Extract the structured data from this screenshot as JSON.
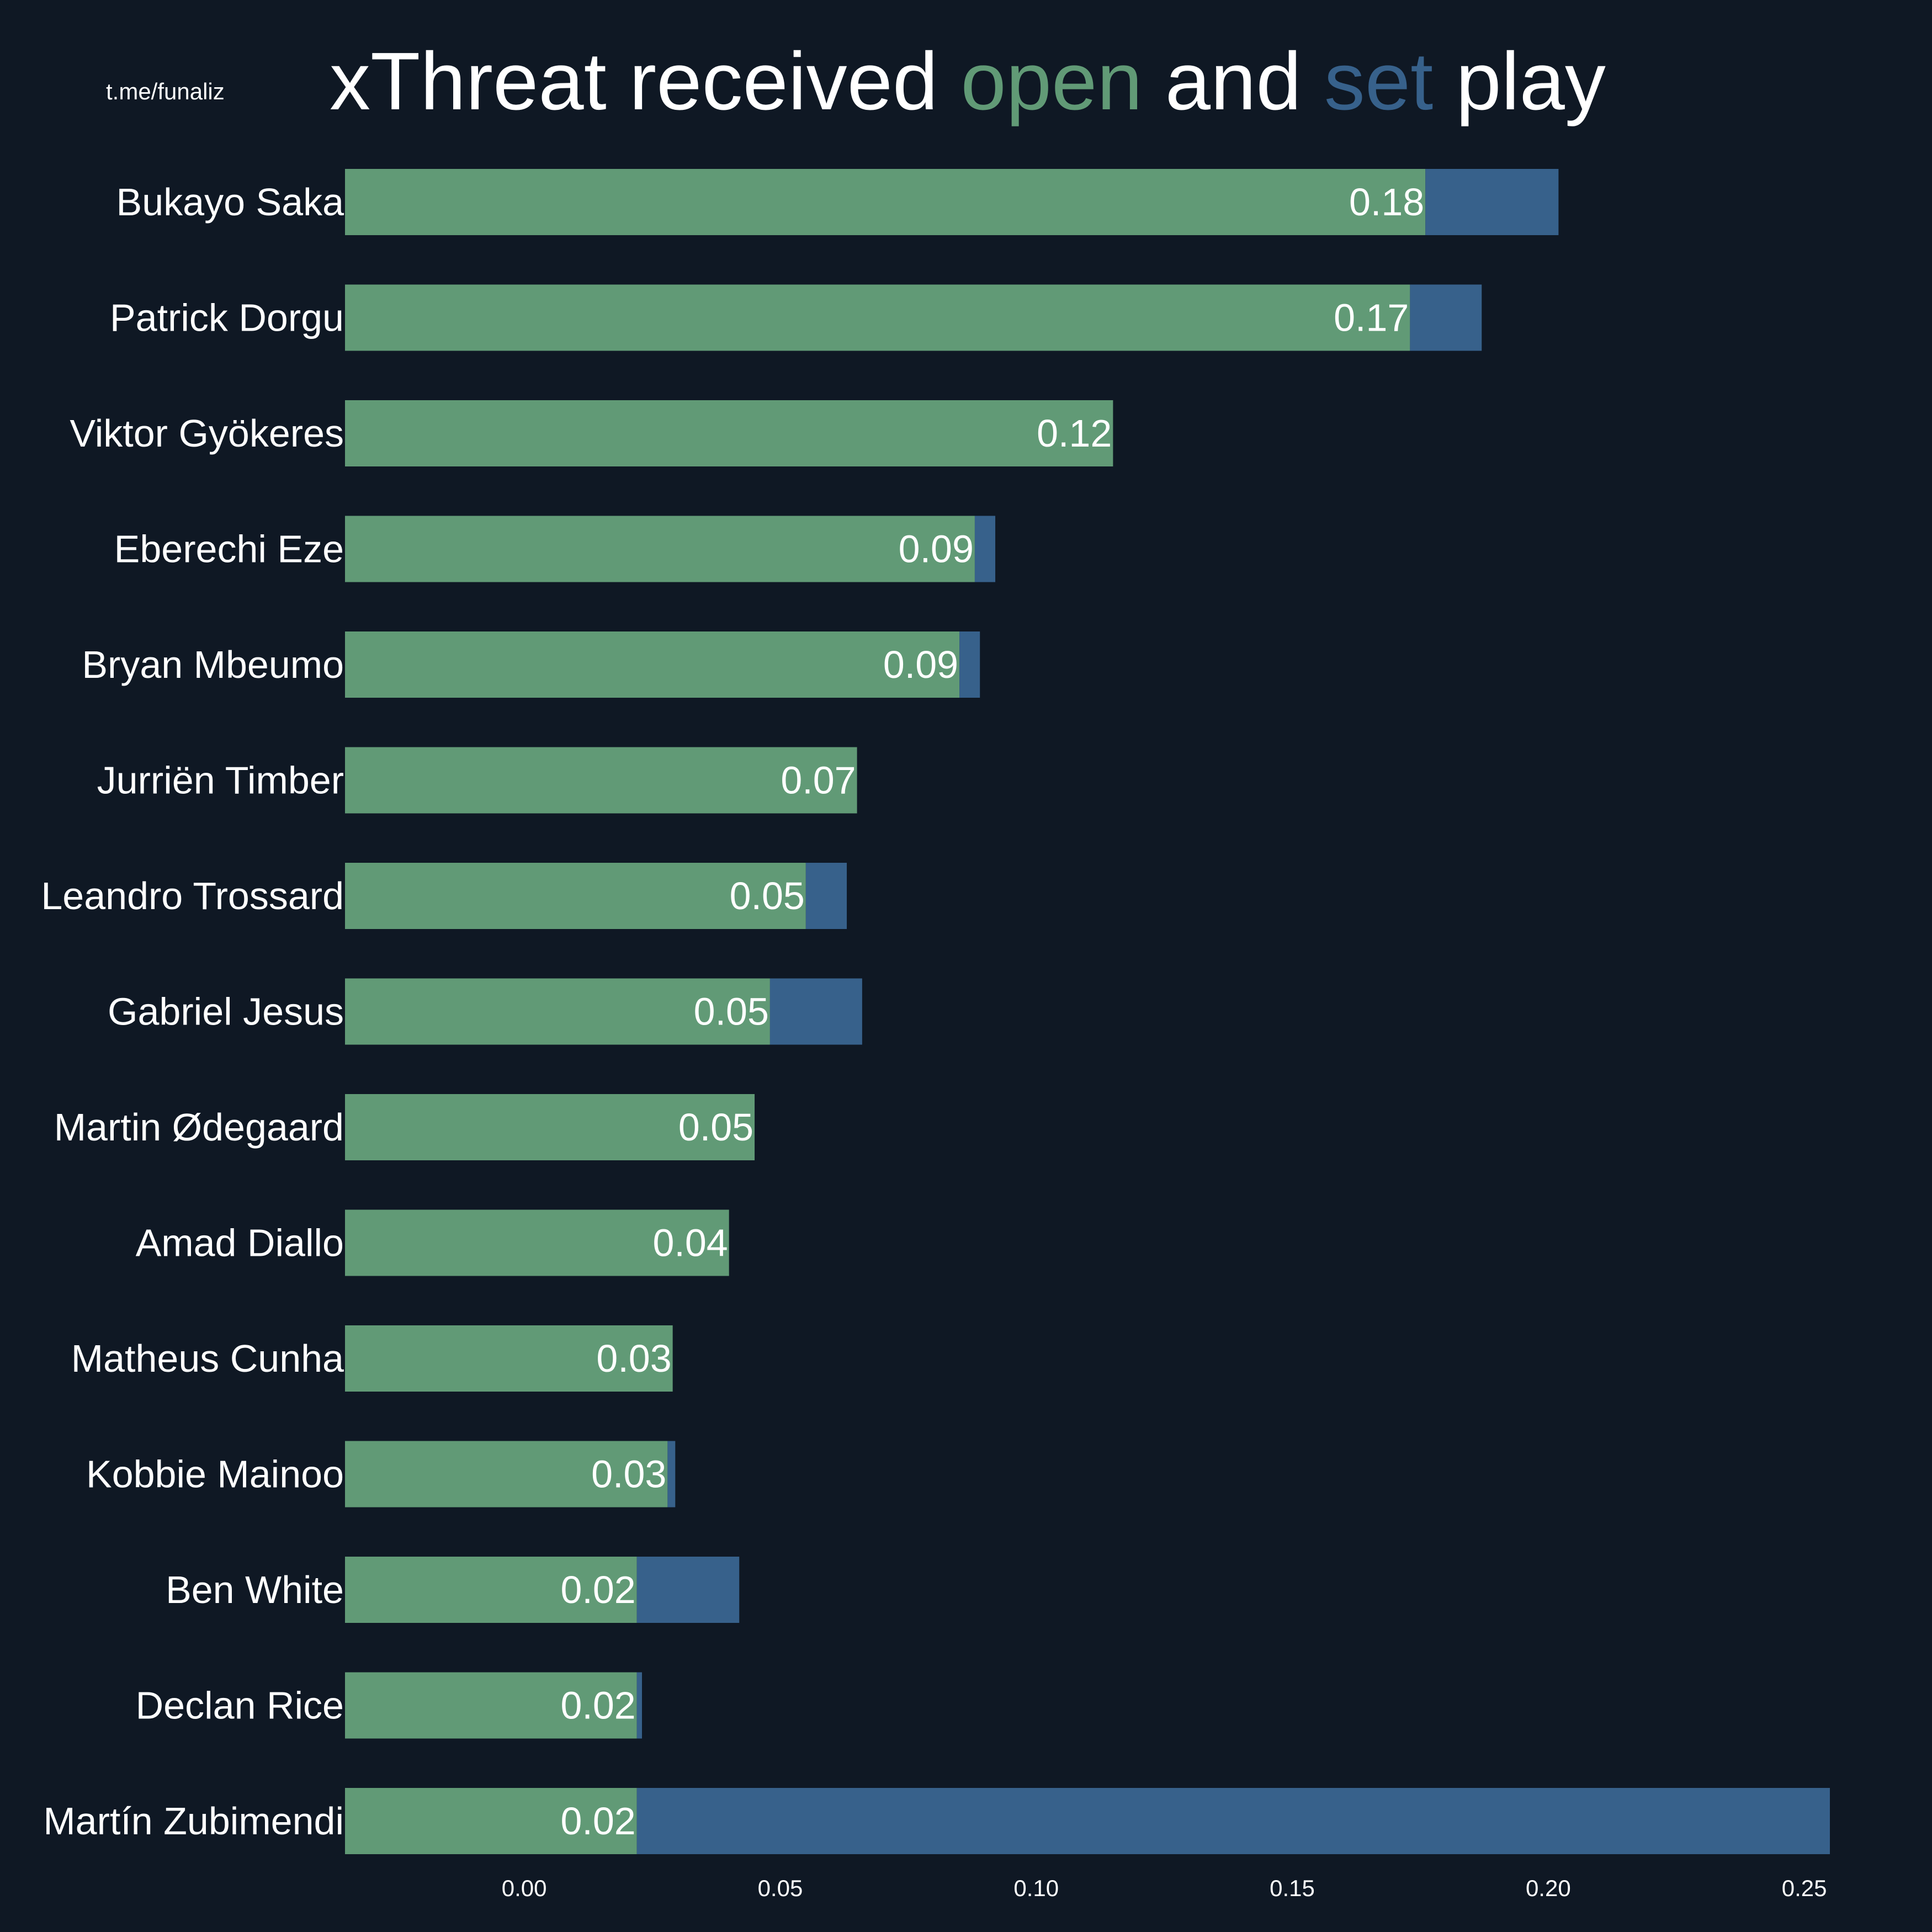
{
  "watermark": "t.me/funaliz",
  "title": {
    "part1": "xThreat received ",
    "part2": "open",
    "part3": " and ",
    "part4": "set",
    "part5": " play"
  },
  "colors": {
    "background": "#0f1824",
    "open_play": "#619a76",
    "set_play": "#37618b",
    "text": "#ffffff"
  },
  "chart_data": {
    "type": "bar",
    "orientation": "horizontal",
    "stacked": true,
    "categories": [
      "Bukayo Saka",
      "Patrick Dorgu",
      "Viktor Gyökeres",
      "Eberechi Eze",
      "Bryan Mbeumo",
      "Jurriën Timber",
      "Leandro Trossard",
      "Gabriel Jesus",
      "Martin Ødegaard",
      "Amad Diallo",
      "Matheus Cunha",
      "Kobbie Mainoo",
      "Ben White",
      "Declan Rice",
      "Martín Zubimendi"
    ],
    "series": [
      {
        "name": "open",
        "color": "#619a76",
        "values": [
          0.176,
          0.173,
          0.115,
          0.088,
          0.085,
          0.065,
          0.055,
          0.048,
          0.045,
          0.04,
          0.029,
          0.028,
          0.022,
          0.022,
          0.022
        ]
      },
      {
        "name": "set",
        "color": "#37618b",
        "values": [
          0.026,
          0.014,
          0.0,
          0.004,
          0.004,
          0.0,
          0.008,
          0.018,
          0.0,
          0.0,
          0.0,
          0.0015,
          0.02,
          0.001,
          0.233
        ]
      }
    ],
    "value_labels": [
      "0.18",
      "0.17",
      "0.12",
      "0.09",
      "0.09",
      "0.07",
      "0.05",
      "0.05",
      "0.05",
      "0.04",
      "0.03",
      "0.03",
      "0.02",
      "0.02",
      "0.02"
    ],
    "xticks": [
      0.0,
      0.05,
      0.1,
      0.15,
      0.2,
      0.25
    ],
    "xtick_labels": [
      "0.00",
      "0.05",
      "0.10",
      "0.15",
      "0.20",
      "0.25"
    ],
    "xlim": [
      -0.035,
      0.255
    ],
    "xlabel": "",
    "ylabel": "",
    "grid": false,
    "legend": "none"
  }
}
